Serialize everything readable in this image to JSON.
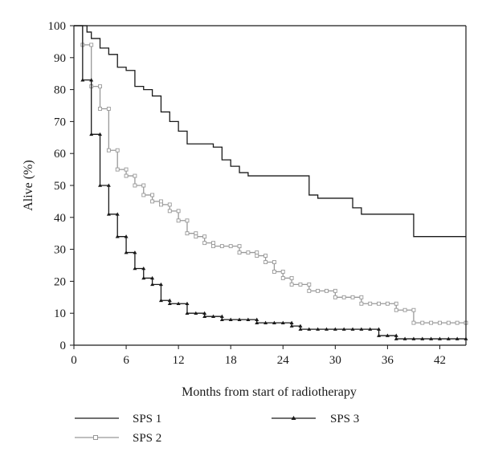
{
  "chart_data": {
    "type": "line",
    "subtype": "kaplan-meier step curves",
    "xlabel": "Months from start of radiotherapy",
    "ylabel": "Alive (%)",
    "xlim": [
      0,
      45
    ],
    "ylim": [
      0,
      100
    ],
    "xticks": [
      0,
      6,
      12,
      18,
      24,
      30,
      36,
      42
    ],
    "yticks": [
      0,
      10,
      20,
      30,
      40,
      50,
      60,
      70,
      80,
      90,
      100
    ],
    "grid": false,
    "legend_position": "bottom",
    "series": [
      {
        "name": "SPS 1",
        "color": "#1a1a1a",
        "marker": "none",
        "points": [
          [
            0,
            100
          ],
          [
            1.5,
            98
          ],
          [
            2,
            96
          ],
          [
            3,
            93
          ],
          [
            4,
            91
          ],
          [
            5,
            87
          ],
          [
            6,
            86
          ],
          [
            7,
            81
          ],
          [
            8,
            80
          ],
          [
            8.5,
            80
          ],
          [
            9,
            78
          ],
          [
            10,
            73
          ],
          [
            11,
            70
          ],
          [
            12,
            67
          ],
          [
            13,
            63
          ],
          [
            16,
            62
          ],
          [
            17,
            58
          ],
          [
            18,
            56
          ],
          [
            19,
            54
          ],
          [
            20,
            53
          ],
          [
            27,
            47
          ],
          [
            28,
            46
          ],
          [
            32,
            43
          ],
          [
            33,
            41
          ],
          [
            39,
            34
          ],
          [
            45,
            34
          ]
        ]
      },
      {
        "name": "SPS 2",
        "color": "#999999",
        "marker": "square",
        "points": [
          [
            0,
            100
          ],
          [
            1,
            94
          ],
          [
            2,
            94
          ],
          [
            2,
            81
          ],
          [
            3,
            81
          ],
          [
            3,
            74
          ],
          [
            4,
            74
          ],
          [
            4,
            61
          ],
          [
            5,
            61
          ],
          [
            5,
            55
          ],
          [
            6,
            55
          ],
          [
            6,
            53
          ],
          [
            7,
            53
          ],
          [
            7,
            50
          ],
          [
            8,
            50
          ],
          [
            8,
            47
          ],
          [
            9,
            47
          ],
          [
            9,
            45
          ],
          [
            10,
            45
          ],
          [
            10,
            44
          ],
          [
            11,
            44
          ],
          [
            11,
            42
          ],
          [
            12,
            42
          ],
          [
            12,
            39
          ],
          [
            13,
            39
          ],
          [
            13,
            35
          ],
          [
            14,
            35
          ],
          [
            14,
            34
          ],
          [
            15,
            34
          ],
          [
            15,
            32
          ],
          [
            16,
            32
          ],
          [
            16,
            31
          ],
          [
            17,
            31
          ],
          [
            18,
            31
          ],
          [
            19,
            31
          ],
          [
            19,
            29
          ],
          [
            20,
            29
          ],
          [
            21,
            29
          ],
          [
            21,
            28
          ],
          [
            22,
            28
          ],
          [
            22,
            26
          ],
          [
            23,
            26
          ],
          [
            23,
            23
          ],
          [
            24,
            23
          ],
          [
            24,
            21
          ],
          [
            25,
            21
          ],
          [
            25,
            19
          ],
          [
            26,
            19
          ],
          [
            27,
            19
          ],
          [
            27,
            17
          ],
          [
            28,
            17
          ],
          [
            29,
            17
          ],
          [
            30,
            17
          ],
          [
            30,
            15
          ],
          [
            31,
            15
          ],
          [
            32,
            15
          ],
          [
            33,
            15
          ],
          [
            33,
            13
          ],
          [
            34,
            13
          ],
          [
            35,
            13
          ],
          [
            36,
            13
          ],
          [
            37,
            13
          ],
          [
            37,
            11
          ],
          [
            38,
            11
          ],
          [
            39,
            11
          ],
          [
            39,
            7
          ],
          [
            40,
            7
          ],
          [
            41,
            7
          ],
          [
            42,
            7
          ],
          [
            43,
            7
          ],
          [
            44,
            7
          ],
          [
            45,
            7
          ]
        ]
      },
      {
        "name": "SPS 3",
        "color": "#1a1a1a",
        "marker": "triangle",
        "points": [
          [
            0,
            100
          ],
          [
            1,
            83
          ],
          [
            2,
            83
          ],
          [
            2,
            66
          ],
          [
            3,
            66
          ],
          [
            3,
            50
          ],
          [
            4,
            50
          ],
          [
            4,
            41
          ],
          [
            5,
            41
          ],
          [
            5,
            34
          ],
          [
            6,
            34
          ],
          [
            6,
            29
          ],
          [
            7,
            29
          ],
          [
            7,
            24
          ],
          [
            8,
            24
          ],
          [
            8,
            21
          ],
          [
            9,
            21
          ],
          [
            9,
            19
          ],
          [
            10,
            19
          ],
          [
            10,
            14
          ],
          [
            11,
            14
          ],
          [
            11,
            13
          ],
          [
            12,
            13
          ],
          [
            13,
            13
          ],
          [
            13,
            10
          ],
          [
            14,
            10
          ],
          [
            15,
            10
          ],
          [
            15,
            9
          ],
          [
            16,
            9
          ],
          [
            17,
            9
          ],
          [
            17,
            8
          ],
          [
            18,
            8
          ],
          [
            19,
            8
          ],
          [
            20,
            8
          ],
          [
            21,
            8
          ],
          [
            21,
            7
          ],
          [
            22,
            7
          ],
          [
            23,
            7
          ],
          [
            24,
            7
          ],
          [
            25,
            7
          ],
          [
            25,
            6
          ],
          [
            26,
            6
          ],
          [
            26,
            5
          ],
          [
            27,
            5
          ],
          [
            28,
            5
          ],
          [
            29,
            5
          ],
          [
            30,
            5
          ],
          [
            31,
            5
          ],
          [
            32,
            5
          ],
          [
            33,
            5
          ],
          [
            34,
            5
          ],
          [
            35,
            5
          ],
          [
            35,
            3
          ],
          [
            36,
            3
          ],
          [
            37,
            3
          ],
          [
            37,
            2
          ],
          [
            38,
            2
          ],
          [
            39,
            2
          ],
          [
            40,
            2
          ],
          [
            41,
            2
          ],
          [
            42,
            2
          ],
          [
            43,
            2
          ],
          [
            44,
            2
          ],
          [
            45,
            2
          ]
        ]
      }
    ]
  }
}
